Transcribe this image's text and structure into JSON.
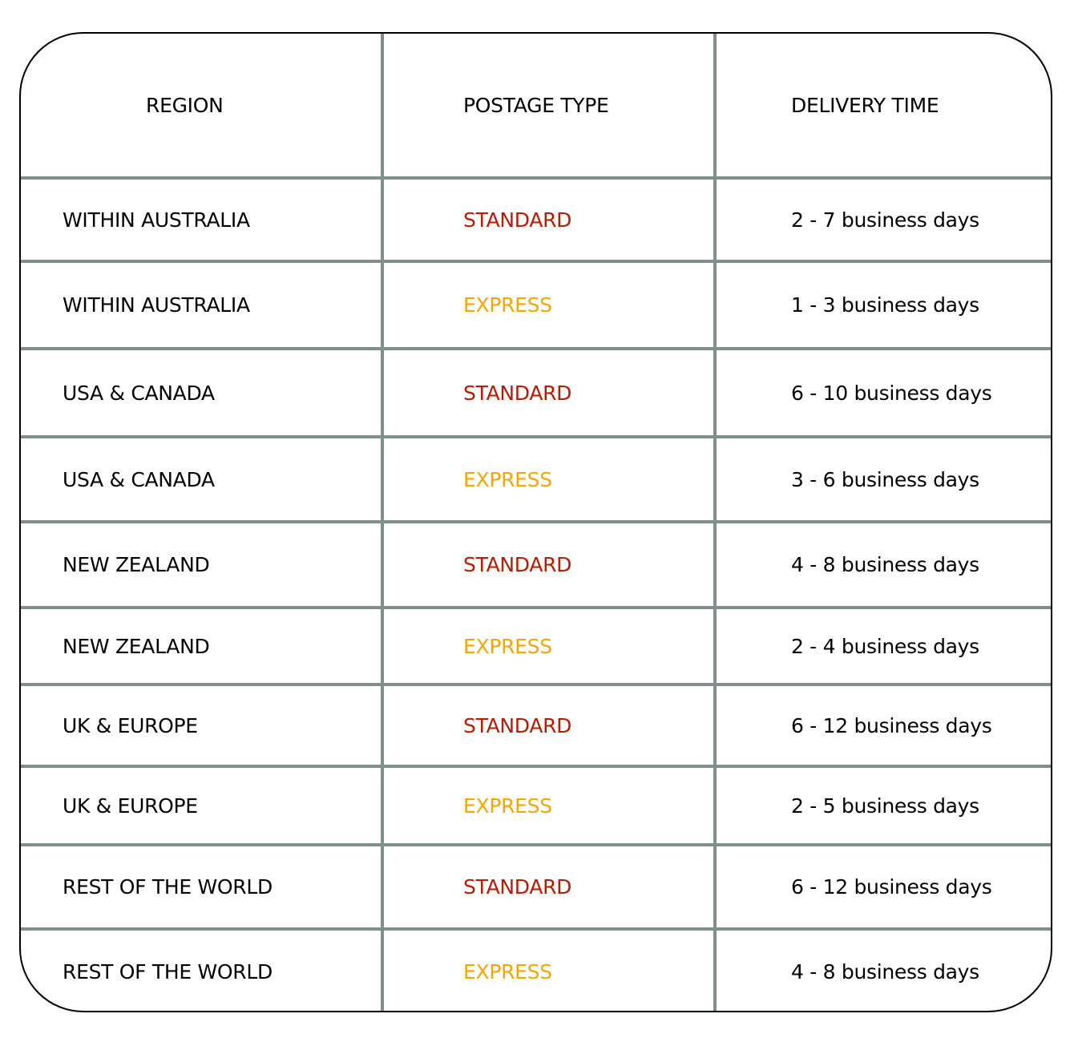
{
  "headers": {
    "region": "REGION",
    "postage_type": "POSTAGE TYPE",
    "delivery_time": "DELIVERY TIME"
  },
  "colors": {
    "standard": "#b81c00",
    "express": "#f7a500",
    "grid": "#7f8f8c"
  },
  "rows": [
    {
      "region": "WITHIN AUSTRALIA",
      "type": "STANDARD",
      "time": "2 - 7 business days"
    },
    {
      "region": "WITHIN AUSTRALIA",
      "type": "EXPRESS",
      "time": "1 - 3 business days"
    },
    {
      "region": "USA & CANADA",
      "type": "STANDARD",
      "time": "6 - 10 business days"
    },
    {
      "region": "USA & CANADA",
      "type": "EXPRESS",
      "time": "3 - 6 business days"
    },
    {
      "region": "NEW ZEALAND",
      "type": "STANDARD",
      "time": "4 - 8 business days"
    },
    {
      "region": "NEW ZEALAND",
      "type": "EXPRESS",
      "time": "2 - 4 business days"
    },
    {
      "region": "UK & EUROPE",
      "type": "STANDARD",
      "time": "6 - 12 business days"
    },
    {
      "region": "UK & EUROPE",
      "type": "EXPRESS",
      "time": "2 - 5 business days"
    },
    {
      "region": "REST OF THE WORLD",
      "type": "STANDARD",
      "time": "6 - 12 business days"
    },
    {
      "region": "REST OF THE WORLD",
      "type": "EXPRESS",
      "time": "4 - 8 business days"
    }
  ]
}
